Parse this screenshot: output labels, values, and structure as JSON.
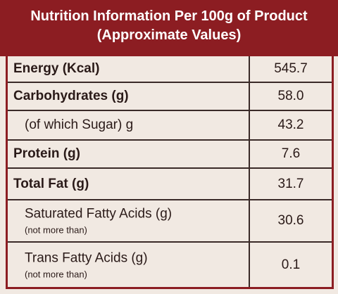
{
  "header": {
    "title": "Nutrition Information Per 100g of Product",
    "subtitle": "(Approximate Values)"
  },
  "table": {
    "rows": [
      {
        "label": "Energy (Kcal)",
        "value": "545.7"
      },
      {
        "label": "Carbohydrates (g)",
        "value": "58.0"
      },
      {
        "label": "(of which Sugar) g",
        "value": "43.2"
      },
      {
        "label": "Protein (g)",
        "value": "7.6"
      },
      {
        "label": "Total Fat (g)",
        "value": "31.7"
      },
      {
        "label": "Saturated Fatty Acids (g)",
        "note": "(not more than)",
        "value": "30.6"
      },
      {
        "label": "Trans Fatty Acids (g)",
        "note": "(not more than)",
        "value": "0.1"
      }
    ]
  }
}
